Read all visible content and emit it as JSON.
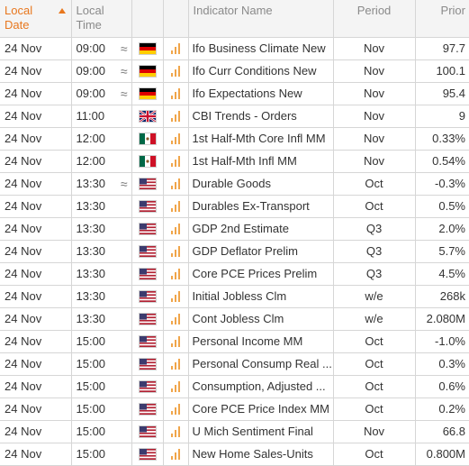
{
  "headers": {
    "local_date": [
      "Local",
      "Date"
    ],
    "local_time": [
      "Local",
      "Time"
    ],
    "indicator": "Indicator Name",
    "period": "Period",
    "prior": "Prior"
  },
  "colors": {
    "accent": "#e8771e",
    "importance": "#f0a54a"
  },
  "rows": [
    {
      "date": "24 Nov",
      "time": "09:00",
      "approx": "≈",
      "flag": "de",
      "indicator": "Ifo Business Climate New",
      "period": "Nov",
      "prior": "97.7"
    },
    {
      "date": "24 Nov",
      "time": "09:00",
      "approx": "≈",
      "flag": "de",
      "indicator": "Ifo Curr Conditions New",
      "period": "Nov",
      "prior": "100.1"
    },
    {
      "date": "24 Nov",
      "time": "09:00",
      "approx": "≈",
      "flag": "de",
      "indicator": "Ifo Expectations New",
      "period": "Nov",
      "prior": "95.4"
    },
    {
      "date": "24 Nov",
      "time": "11:00",
      "approx": "",
      "flag": "gb",
      "indicator": "CBI Trends - Orders",
      "period": "Nov",
      "prior": "9"
    },
    {
      "date": "24 Nov",
      "time": "12:00",
      "approx": "",
      "flag": "mx",
      "indicator": "1st Half-Mth Core Infl MM",
      "period": "Nov",
      "prior": "0.33%"
    },
    {
      "date": "24 Nov",
      "time": "12:00",
      "approx": "",
      "flag": "mx",
      "indicator": "1st Half-Mth Infl MM",
      "period": "Nov",
      "prior": "0.54%"
    },
    {
      "date": "24 Nov",
      "time": "13:30",
      "approx": "≈",
      "flag": "us",
      "indicator": "Durable Goods",
      "period": "Oct",
      "prior": "-0.3%"
    },
    {
      "date": "24 Nov",
      "time": "13:30",
      "approx": "",
      "flag": "us",
      "indicator": "Durables Ex-Transport",
      "period": "Oct",
      "prior": "0.5%"
    },
    {
      "date": "24 Nov",
      "time": "13:30",
      "approx": "",
      "flag": "us",
      "indicator": "GDP 2nd Estimate",
      "period": "Q3",
      "prior": "2.0%"
    },
    {
      "date": "24 Nov",
      "time": "13:30",
      "approx": "",
      "flag": "us",
      "indicator": "GDP Deflator Prelim",
      "period": "Q3",
      "prior": "5.7%"
    },
    {
      "date": "24 Nov",
      "time": "13:30",
      "approx": "",
      "flag": "us",
      "indicator": "Core PCE Prices Prelim",
      "period": "Q3",
      "prior": "4.5%"
    },
    {
      "date": "24 Nov",
      "time": "13:30",
      "approx": "",
      "flag": "us",
      "indicator": "Initial Jobless Clm",
      "period": "w/e",
      "prior": "268k"
    },
    {
      "date": "24 Nov",
      "time": "13:30",
      "approx": "",
      "flag": "us",
      "indicator": "Cont Jobless Clm",
      "period": "w/e",
      "prior": "2.080M"
    },
    {
      "date": "24 Nov",
      "time": "15:00",
      "approx": "",
      "flag": "us",
      "indicator": "Personal Income MM",
      "period": "Oct",
      "prior": "-1.0%"
    },
    {
      "date": "24 Nov",
      "time": "15:00",
      "approx": "",
      "flag": "us",
      "indicator": "Personal Consump Real ...",
      "period": "Oct",
      "prior": "0.3%"
    },
    {
      "date": "24 Nov",
      "time": "15:00",
      "approx": "",
      "flag": "us",
      "indicator": "Consumption, Adjusted ...",
      "period": "Oct",
      "prior": "0.6%"
    },
    {
      "date": "24 Nov",
      "time": "15:00",
      "approx": "",
      "flag": "us",
      "indicator": "Core PCE Price Index MM",
      "period": "Oct",
      "prior": "0.2%"
    },
    {
      "date": "24 Nov",
      "time": "15:00",
      "approx": "",
      "flag": "us",
      "indicator": "U Mich Sentiment Final",
      "period": "Nov",
      "prior": "66.8"
    },
    {
      "date": "24 Nov",
      "time": "15:00",
      "approx": "",
      "flag": "us",
      "indicator": "New Home Sales-Units",
      "period": "Oct",
      "prior": "0.800M"
    }
  ]
}
